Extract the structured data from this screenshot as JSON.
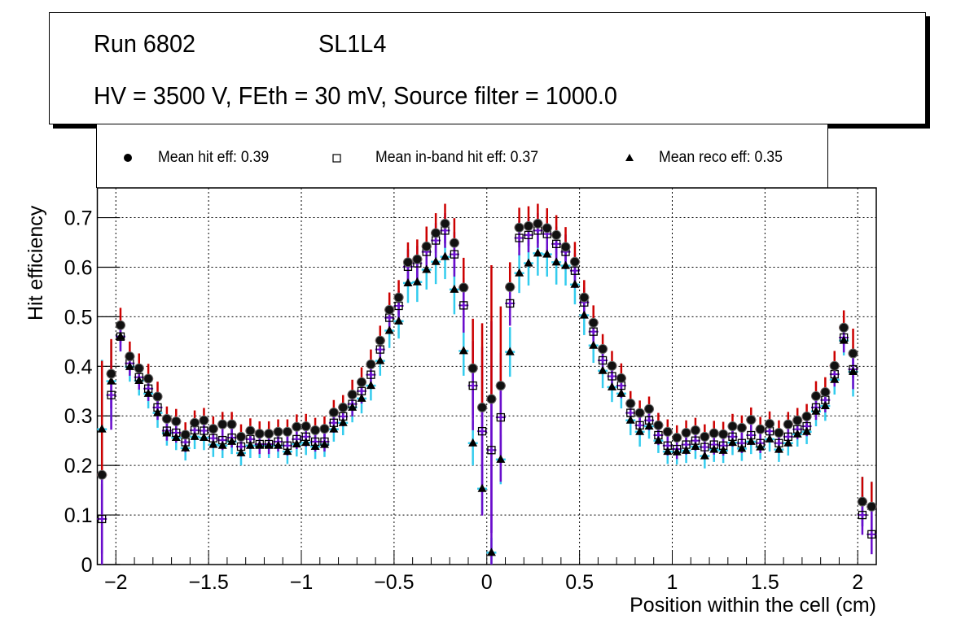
{
  "title": {
    "run_label": "Run 6802",
    "layer_label": "SL1L4",
    "conditions": "HV = 3500 V, FEth = 30 mV, Source filter = 1000.0"
  },
  "legend": {
    "items": [
      {
        "marker": "filled-circle",
        "label": "Mean hit  eff: 0.39"
      },
      {
        "marker": "open-square",
        "label": "Mean in-band hit eff: 0.37"
      },
      {
        "marker": "filled-triangle",
        "label": "Mean reco eff: 0.35"
      }
    ]
  },
  "chart_data": {
    "type": "scatter",
    "title": "Run 6802 SL1L4 — HV = 3500 V, FEth = 30 mV, Source filter = 1000.0",
    "xlabel": "Position within the cell (cm)",
    "ylabel": "Hit efficiency",
    "xlim": [
      -2.1,
      2.1
    ],
    "ylim": [
      0,
      0.76
    ],
    "grid": true,
    "legend_position": "top",
    "x_ticks": [
      "-2",
      "-1.5",
      "-1",
      "-0.5",
      "0",
      "0.5",
      "1",
      "1.5",
      "2"
    ],
    "x_tick_values": [
      -2,
      -1.5,
      -1,
      -0.5,
      0,
      0.5,
      1,
      1.5,
      2
    ],
    "y_ticks": [
      "0",
      "0.1",
      "0.2",
      "0.3",
      "0.4",
      "0.5",
      "0.6",
      "0.7"
    ],
    "y_tick_values": [
      0,
      0.1,
      0.2,
      0.3,
      0.4,
      0.5,
      0.6,
      0.7
    ],
    "x": [
      -2.075,
      -2.025,
      -1.975,
      -1.925,
      -1.875,
      -1.825,
      -1.775,
      -1.725,
      -1.675,
      -1.625,
      -1.575,
      -1.525,
      -1.475,
      -1.425,
      -1.375,
      -1.325,
      -1.275,
      -1.225,
      -1.175,
      -1.125,
      -1.075,
      -1.025,
      -0.975,
      -0.925,
      -0.875,
      -0.825,
      -0.775,
      -0.725,
      -0.675,
      -0.625,
      -0.575,
      -0.525,
      -0.475,
      -0.425,
      -0.375,
      -0.325,
      -0.275,
      -0.225,
      -0.175,
      -0.125,
      -0.075,
      -0.025,
      0.025,
      0.075,
      0.125,
      0.175,
      0.225,
      0.275,
      0.325,
      0.375,
      0.425,
      0.475,
      0.525,
      0.575,
      0.625,
      0.675,
      0.725,
      0.775,
      0.825,
      0.875,
      0.925,
      0.975,
      1.025,
      1.075,
      1.125,
      1.175,
      1.225,
      1.275,
      1.325,
      1.375,
      1.425,
      1.475,
      1.525,
      1.575,
      1.625,
      1.675,
      1.725,
      1.775,
      1.825,
      1.875,
      1.925,
      1.975,
      2.025,
      2.075
    ],
    "series": [
      {
        "name": "Mean hit eff",
        "marker": "filled-circle",
        "color": "#000000",
        "err_up_color": "#cc0000",
        "err_down_color": "#6a0dcc",
        "values": [
          0.181,
          0.385,
          0.483,
          0.42,
          0.396,
          0.375,
          0.339,
          0.294,
          0.289,
          0.262,
          0.286,
          0.291,
          0.274,
          0.283,
          0.283,
          0.258,
          0.27,
          0.264,
          0.264,
          0.268,
          0.268,
          0.278,
          0.279,
          0.271,
          0.274,
          0.307,
          0.317,
          0.343,
          0.368,
          0.404,
          0.452,
          0.514,
          0.539,
          0.61,
          0.616,
          0.642,
          0.669,
          0.688,
          0.649,
          0.559,
          0.396,
          0.317,
          0.334,
          0.361,
          0.56,
          0.68,
          0.683,
          0.688,
          0.679,
          0.665,
          0.641,
          0.611,
          0.539,
          0.488,
          0.435,
          0.401,
          0.376,
          0.325,
          0.306,
          0.314,
          0.281,
          0.268,
          0.256,
          0.266,
          0.271,
          0.258,
          0.265,
          0.263,
          0.279,
          0.276,
          0.292,
          0.273,
          0.284,
          0.266,
          0.283,
          0.291,
          0.299,
          0.34,
          0.348,
          0.401,
          0.478,
          0.426,
          0.127,
          0.117
        ],
        "errors": [
          0.23,
          0.07,
          0.035,
          0.03,
          0.03,
          0.03,
          0.03,
          0.025,
          0.025,
          0.025,
          0.025,
          0.025,
          0.025,
          0.025,
          0.025,
          0.025,
          0.025,
          0.025,
          0.025,
          0.025,
          0.025,
          0.025,
          0.025,
          0.025,
          0.025,
          0.025,
          0.025,
          0.03,
          0.03,
          0.03,
          0.03,
          0.035,
          0.035,
          0.04,
          0.04,
          0.04,
          0.04,
          0.04,
          0.05,
          0.06,
          0.1,
          0.17,
          0.27,
          0.16,
          0.05,
          0.04,
          0.04,
          0.04,
          0.04,
          0.04,
          0.04,
          0.04,
          0.035,
          0.035,
          0.03,
          0.03,
          0.03,
          0.025,
          0.025,
          0.025,
          0.025,
          0.025,
          0.025,
          0.025,
          0.025,
          0.025,
          0.025,
          0.025,
          0.025,
          0.025,
          0.025,
          0.025,
          0.025,
          0.025,
          0.025,
          0.025,
          0.025,
          0.03,
          0.03,
          0.03,
          0.035,
          0.05,
          0.05,
          0.05
        ]
      },
      {
        "name": "Mean in-band hit eff",
        "marker": "open-square",
        "color": "#000000",
        "err_color": "#6a0dcc",
        "values": [
          0.092,
          0.342,
          0.46,
          0.406,
          0.378,
          0.355,
          0.317,
          0.27,
          0.266,
          0.247,
          0.271,
          0.27,
          0.255,
          0.251,
          0.256,
          0.238,
          0.253,
          0.243,
          0.243,
          0.248,
          0.24,
          0.253,
          0.258,
          0.248,
          0.248,
          0.286,
          0.299,
          0.324,
          0.35,
          0.383,
          0.434,
          0.498,
          0.522,
          0.601,
          0.608,
          0.631,
          0.654,
          0.674,
          0.626,
          0.523,
          0.361,
          0.269,
          0.231,
          0.297,
          0.527,
          0.659,
          0.665,
          0.674,
          0.667,
          0.647,
          0.631,
          0.593,
          0.529,
          0.47,
          0.412,
          0.38,
          0.361,
          0.306,
          0.281,
          0.291,
          0.261,
          0.24,
          0.233,
          0.242,
          0.25,
          0.237,
          0.242,
          0.24,
          0.258,
          0.245,
          0.261,
          0.245,
          0.269,
          0.245,
          0.258,
          0.273,
          0.279,
          0.317,
          0.332,
          0.384,
          0.458,
          0.394,
          0.1,
          0.061
        ],
        "errors": [
          0.07,
          0.07,
          0.03,
          0.025,
          0.025,
          0.025,
          0.025,
          0.02,
          0.02,
          0.02,
          0.02,
          0.02,
          0.02,
          0.02,
          0.02,
          0.02,
          0.02,
          0.02,
          0.02,
          0.02,
          0.02,
          0.02,
          0.02,
          0.02,
          0.02,
          0.02,
          0.02,
          0.025,
          0.025,
          0.025,
          0.025,
          0.03,
          0.03,
          0.035,
          0.035,
          0.035,
          0.035,
          0.035,
          0.045,
          0.055,
          0.09,
          0.17,
          0.26,
          0.13,
          0.045,
          0.035,
          0.035,
          0.035,
          0.035,
          0.035,
          0.035,
          0.035,
          0.03,
          0.03,
          0.025,
          0.025,
          0.025,
          0.02,
          0.02,
          0.02,
          0.02,
          0.02,
          0.02,
          0.02,
          0.02,
          0.02,
          0.02,
          0.02,
          0.02,
          0.02,
          0.02,
          0.02,
          0.02,
          0.02,
          0.02,
          0.02,
          0.02,
          0.025,
          0.025,
          0.025,
          0.03,
          0.04,
          0.04,
          0.04
        ]
      },
      {
        "name": "Mean reco eff",
        "marker": "filled-triangle",
        "color": "#000000",
        "err_color": "#33ccee",
        "values": [
          0.273,
          0.37,
          0.46,
          0.399,
          0.371,
          0.345,
          0.306,
          0.265,
          0.256,
          0.235,
          0.258,
          0.256,
          0.242,
          0.24,
          0.248,
          0.225,
          0.24,
          0.24,
          0.24,
          0.24,
          0.228,
          0.243,
          0.246,
          0.238,
          0.242,
          0.273,
          0.286,
          0.317,
          0.335,
          0.361,
          0.411,
          0.472,
          0.491,
          0.568,
          0.57,
          0.595,
          0.611,
          0.621,
          0.555,
          0.431,
          0.245,
          0.153,
          0.024,
          0.212,
          0.429,
          0.588,
          0.608,
          0.628,
          0.626,
          0.61,
          0.603,
          0.565,
          0.503,
          0.442,
          0.391,
          0.358,
          0.345,
          0.291,
          0.268,
          0.279,
          0.25,
          0.228,
          0.227,
          0.23,
          0.238,
          0.219,
          0.232,
          0.23,
          0.246,
          0.234,
          0.248,
          0.237,
          0.253,
          0.232,
          0.245,
          0.263,
          0.268,
          0.309,
          0.32,
          0.373,
          0.452,
          0.389,
          0.127,
          0.117
        ],
        "errors": [
          0.14,
          0.08,
          0.03,
          0.03,
          0.03,
          0.03,
          0.03,
          0.025,
          0.025,
          0.025,
          0.025,
          0.025,
          0.025,
          0.025,
          0.025,
          0.025,
          0.025,
          0.025,
          0.025,
          0.025,
          0.025,
          0.025,
          0.025,
          0.025,
          0.025,
          0.025,
          0.025,
          0.03,
          0.03,
          0.03,
          0.03,
          0.035,
          0.035,
          0.04,
          0.04,
          0.04,
          0.045,
          0.045,
          0.05,
          0.05,
          0.045,
          0.05,
          0.03,
          0.05,
          0.05,
          0.04,
          0.045,
          0.045,
          0.045,
          0.045,
          0.04,
          0.04,
          0.04,
          0.035,
          0.035,
          0.03,
          0.03,
          0.03,
          0.03,
          0.025,
          0.025,
          0.025,
          0.025,
          0.025,
          0.025,
          0.025,
          0.025,
          0.025,
          0.025,
          0.025,
          0.025,
          0.025,
          0.025,
          0.025,
          0.025,
          0.025,
          0.025,
          0.03,
          0.03,
          0.03,
          0.03,
          0.05,
          0.05,
          0.05
        ]
      }
    ]
  }
}
